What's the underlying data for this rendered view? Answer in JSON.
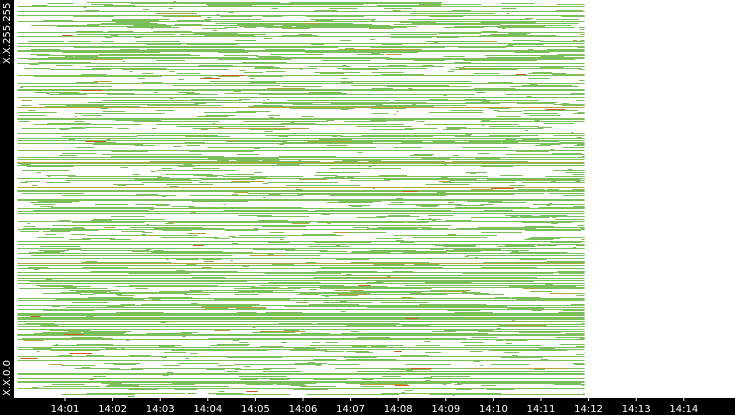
{
  "chart_data": {
    "type": "heatmap",
    "title": "",
    "xlabel": "",
    "ylabel": "",
    "x_ticks": [
      "14:01",
      "14:02",
      "14:03",
      "14:04",
      "14:05",
      "14:06",
      "14:07",
      "14:08",
      "14:09",
      "14:10",
      "14:11",
      "14:12",
      "14:13",
      "14:14"
    ],
    "y_top_label": "X.X.255.255",
    "y_bottom_label": "X.X.0.0",
    "data_start": "14:00",
    "data_end": "14:12",
    "x_axis_end": "14:14.5",
    "grid": false,
    "legend": "none",
    "colors": {
      "background": "#ffffff",
      "axis_band": "#000000",
      "axis_text": "#ffffff",
      "low_activity": "#7bbf5a",
      "medium_activity": "#b3a43a",
      "high_activity": "#d05a1e"
    }
  }
}
